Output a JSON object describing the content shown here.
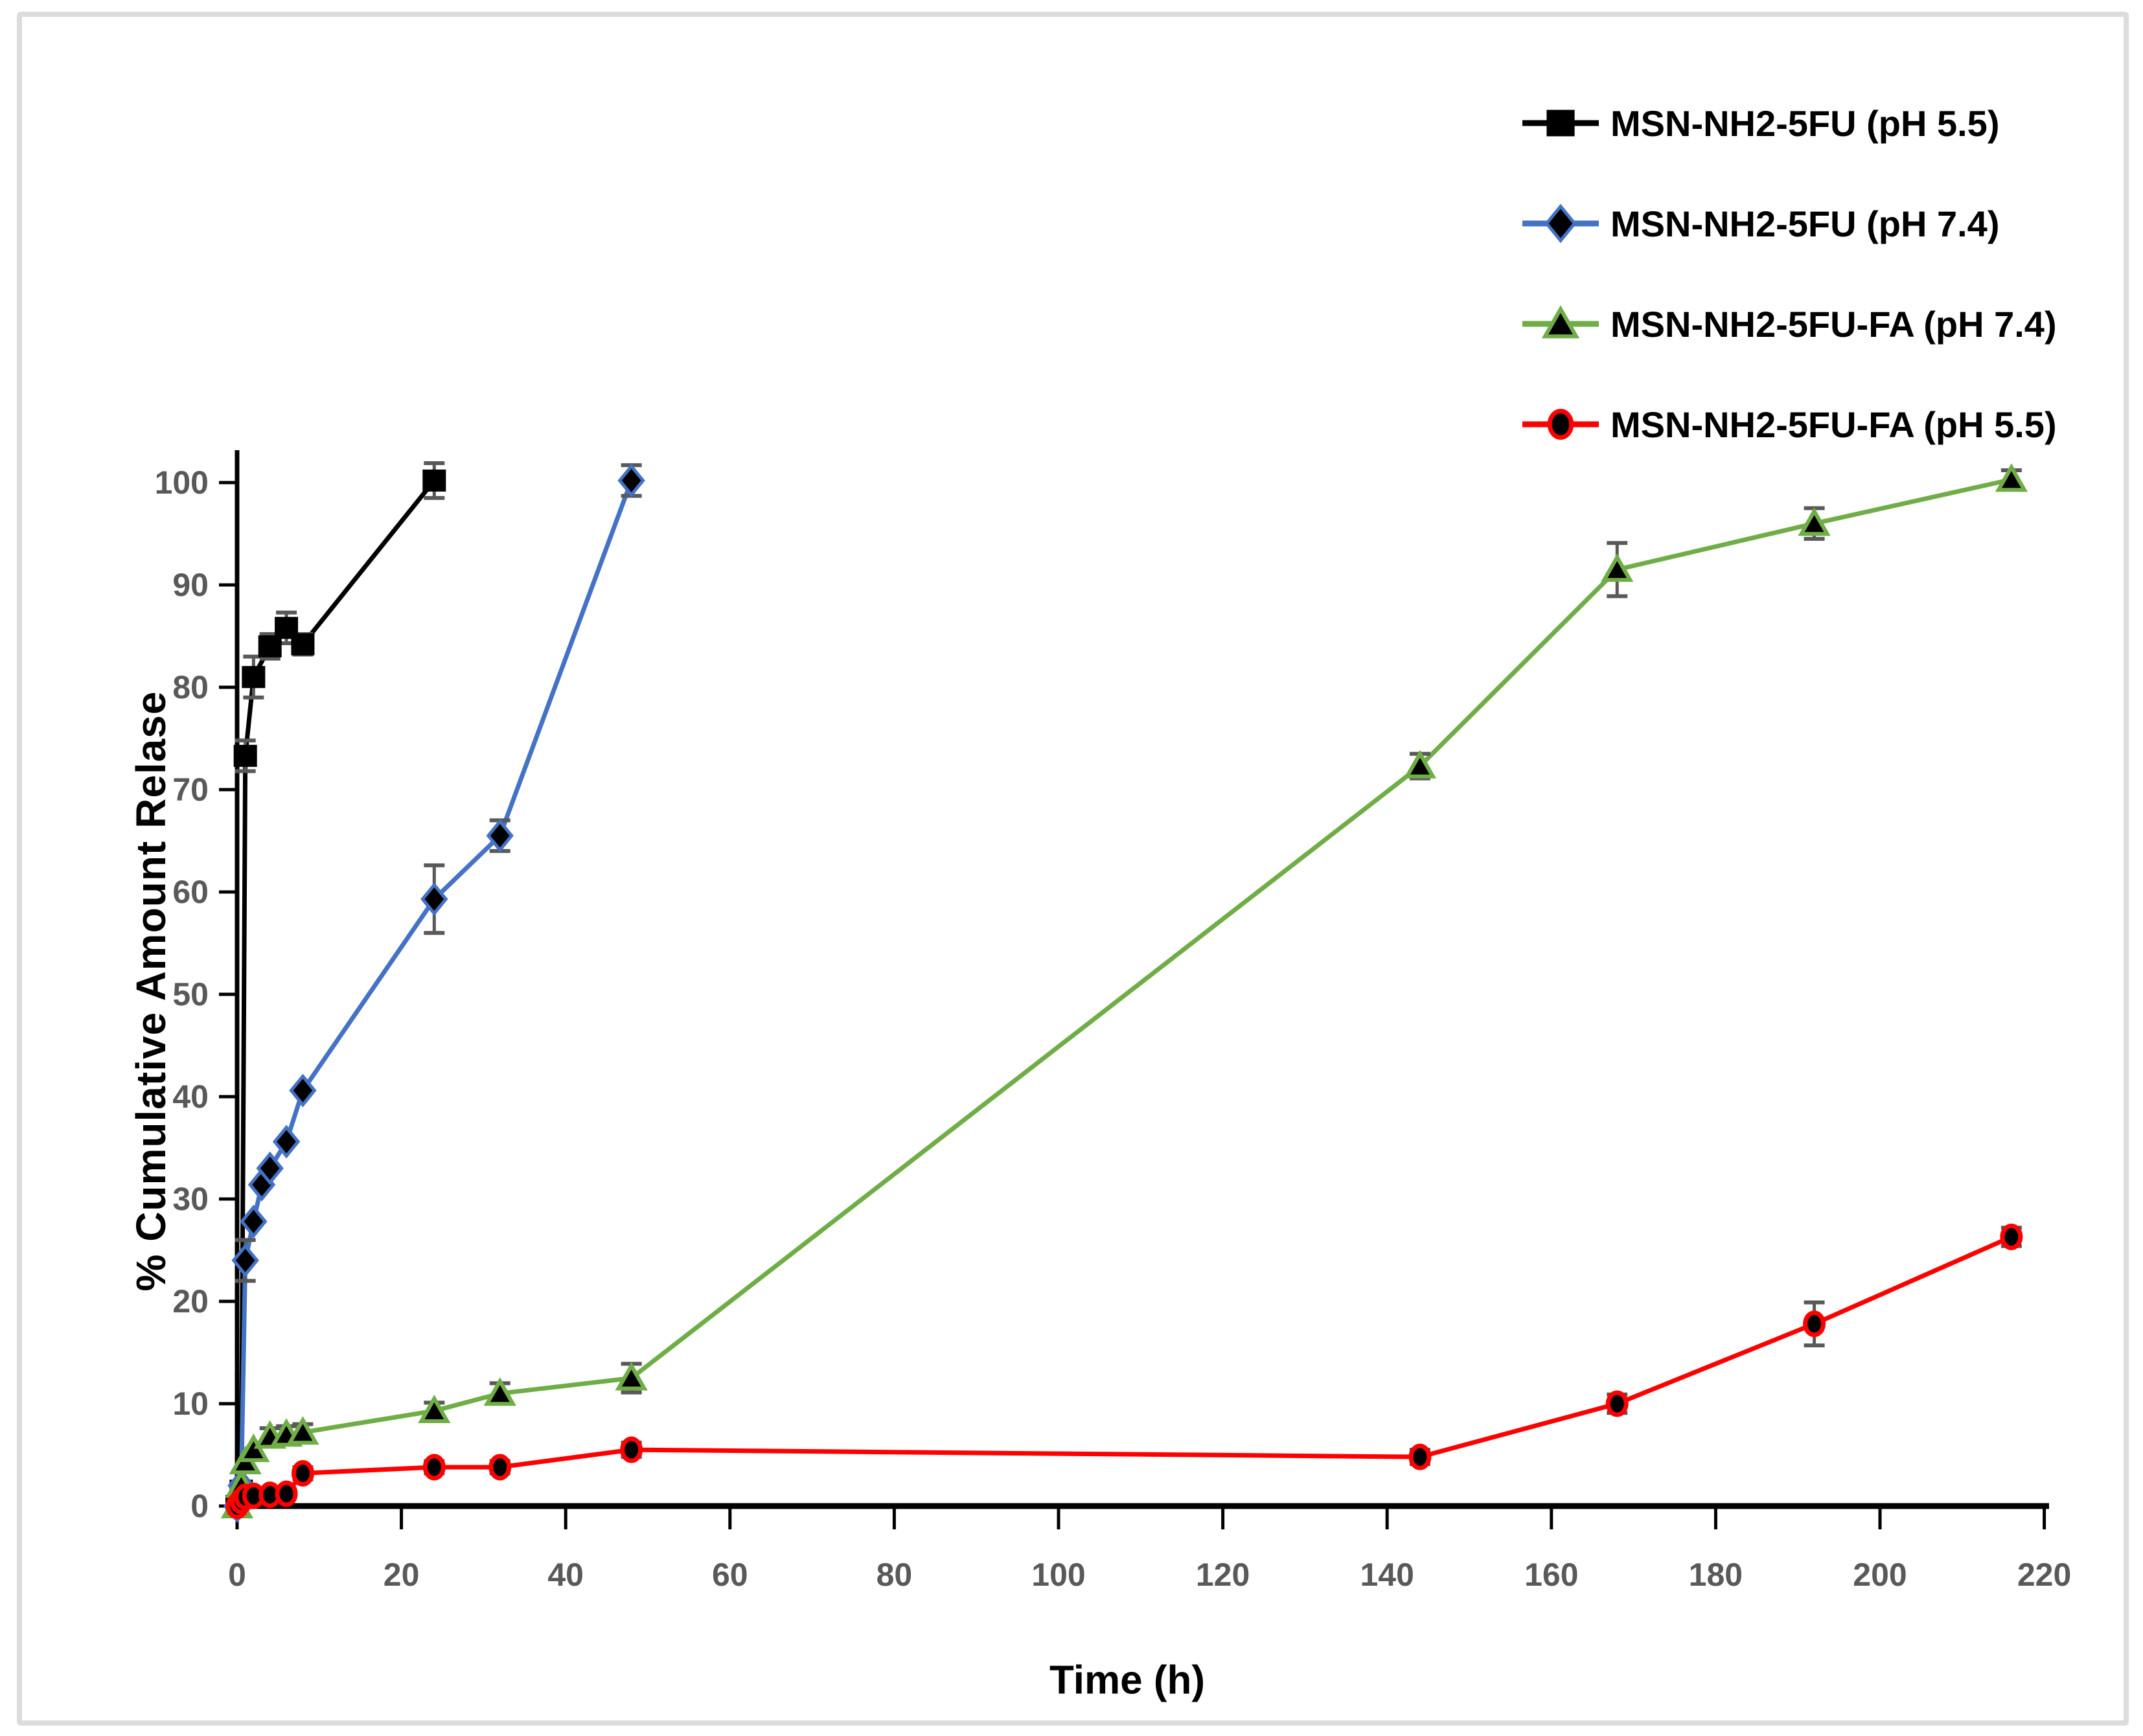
{
  "figure": {
    "background": "#ffffff",
    "border_color": "#dcdcdc"
  },
  "chart_data": {
    "type": "line",
    "title": "",
    "xlabel": "Time (h)",
    "ylabel": "% Cumulative Amount Relase",
    "xlim": [
      0,
      220
    ],
    "xtick_step": 20,
    "ylim": [
      0,
      100
    ],
    "ytick_step": 10,
    "grid": false,
    "legend_position": "top-right",
    "axis_color": "#000000",
    "tick_label_color": "#595959",
    "error_bar_color": "#595959",
    "series": [
      {
        "name": "MSN-NH2-5FU (pH 5.5)",
        "color": "#000000",
        "marker": "square",
        "marker_fill": "#000000",
        "marker_outline": "#000000",
        "points": [
          [
            0,
            0,
            0
          ],
          [
            0.5,
            1.5,
            0
          ],
          [
            1,
            73.3,
            1.5
          ],
          [
            2,
            81,
            2
          ],
          [
            4,
            84,
            1.2
          ],
          [
            6,
            85.8,
            1.5
          ],
          [
            8,
            84.2,
            1
          ],
          [
            24,
            100.2,
            1.7
          ]
        ]
      },
      {
        "name": "MSN-NH2-5FU (pH 7.4)",
        "color": "#4472C4",
        "marker": "diamond",
        "marker_fill": "#000000",
        "marker_outline": "#4472C4",
        "points": [
          [
            0,
            0,
            0
          ],
          [
            0.5,
            2,
            0
          ],
          [
            1,
            24,
            2
          ],
          [
            2,
            27.8,
            0
          ],
          [
            3,
            31.4,
            0
          ],
          [
            4,
            33,
            0
          ],
          [
            6,
            35.6,
            0
          ],
          [
            8,
            40.6,
            0
          ],
          [
            24,
            59.3,
            3.3
          ],
          [
            32,
            65.5,
            1.5
          ],
          [
            48,
            100.2,
            1.5
          ]
        ]
      },
      {
        "name": "MSN-NH2-5FU-FA (pH 7.4)",
        "color": "#70AD47",
        "marker": "triangle",
        "marker_fill": "#000000",
        "marker_outline": "#70AD47",
        "points": [
          [
            0,
            0,
            0
          ],
          [
            0.5,
            2,
            0
          ],
          [
            1,
            4.3,
            0
          ],
          [
            2,
            5.5,
            0
          ],
          [
            4,
            6.8,
            0.8
          ],
          [
            6,
            7,
            0.8
          ],
          [
            8,
            7.2,
            0.8
          ],
          [
            24,
            9.3,
            0.8
          ],
          [
            32,
            11,
            1
          ],
          [
            48,
            12.5,
            1.4
          ],
          [
            144,
            72.3,
            1.2
          ],
          [
            168,
            91.5,
            2.6
          ],
          [
            192,
            96,
            1.5
          ],
          [
            216,
            100.3,
            0.9
          ]
        ]
      },
      {
        "name": "MSN-NH2-5FU-FA (pH 5.5)",
        "color": "#FF0000",
        "marker": "ellipse",
        "marker_fill": "#000000",
        "marker_outline": "#FF0000",
        "points": [
          [
            0,
            0,
            0
          ],
          [
            0.5,
            0.5,
            0
          ],
          [
            1,
            0.9,
            0
          ],
          [
            2,
            1,
            0
          ],
          [
            4,
            1.1,
            0
          ],
          [
            6,
            1.2,
            0
          ],
          [
            8,
            3.2,
            0.6
          ],
          [
            24,
            3.8,
            0.6
          ],
          [
            32,
            3.8,
            0.6
          ],
          [
            48,
            5.5,
            0.7
          ],
          [
            144,
            4.8,
            0.7
          ],
          [
            168,
            10,
            0.9
          ],
          [
            192,
            17.8,
            2.1
          ],
          [
            216,
            26.3,
            0.9
          ]
        ]
      }
    ]
  }
}
